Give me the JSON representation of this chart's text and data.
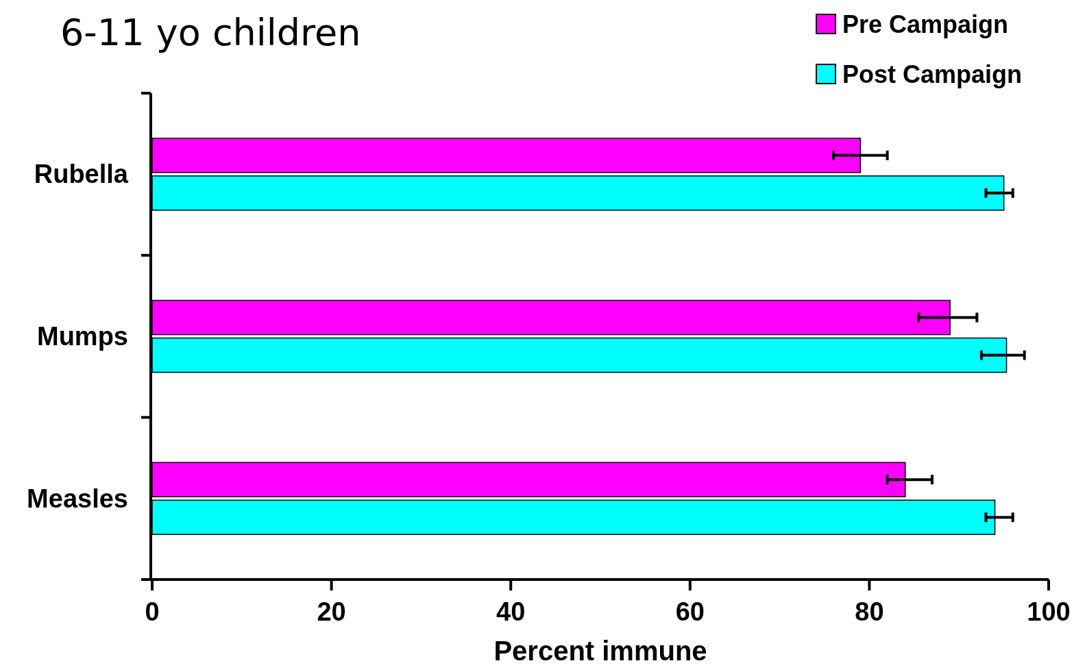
{
  "chart_data": {
    "type": "bar",
    "orientation": "horizontal",
    "title": "6-11 yo children",
    "xlabel": "Percent immune",
    "categories": [
      "Rubella",
      "Mumps",
      "Measles"
    ],
    "series": [
      {
        "name": "Pre Campaign",
        "color": "#ff00ff",
        "values": [
          79,
          89,
          84
        ],
        "errors": [
          [
            76,
            82
          ],
          [
            85.5,
            92
          ],
          [
            82,
            87
          ]
        ]
      },
      {
        "name": "Post Campaign",
        "color": "#00ffff",
        "values": [
          95,
          95.3,
          94
        ],
        "errors": [
          [
            93,
            96
          ],
          [
            92.5,
            97.3
          ],
          [
            93,
            96
          ]
        ]
      }
    ],
    "xlim": [
      0,
      100
    ],
    "xticks": [
      0,
      20,
      40,
      60,
      80,
      100
    ],
    "legend": "top right"
  }
}
